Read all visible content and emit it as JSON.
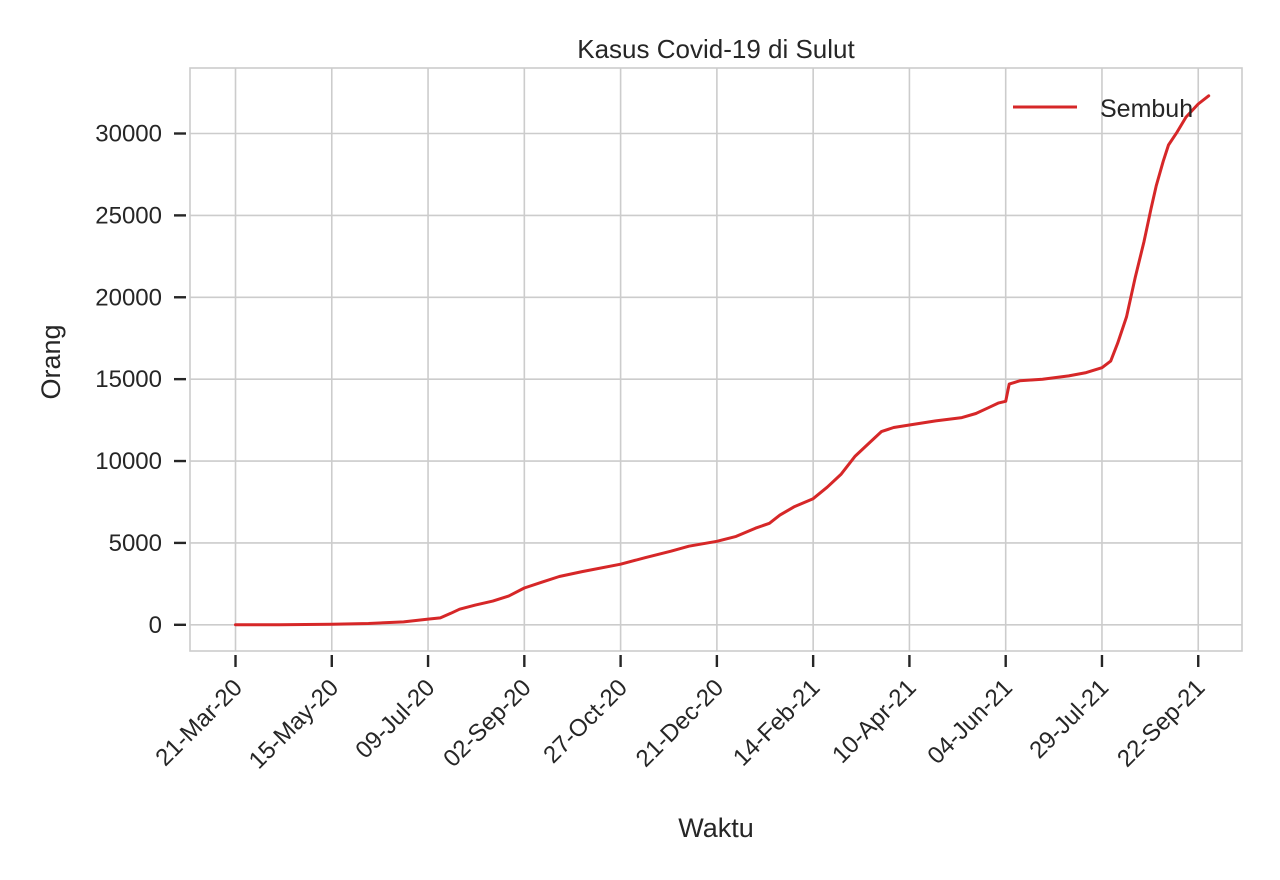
{
  "chart_data": {
    "type": "line",
    "title": "Kasus Covid-19 di Sulut",
    "xlabel": "Waktu",
    "ylabel": "Orang",
    "x_tick_labels": [
      "21-Mar-20",
      "15-May-20",
      "09-Jul-20",
      "02-Sep-20",
      "27-Oct-20",
      "21-Dec-20",
      "14-Feb-21",
      "10-Apr-21",
      "04-Jun-21",
      "29-Jul-21",
      "22-Sep-21"
    ],
    "x_tick_dates": [
      "2020-03-21",
      "2020-05-15",
      "2020-07-09",
      "2020-09-02",
      "2020-10-27",
      "2020-12-21",
      "2021-02-14",
      "2021-04-10",
      "2021-06-04",
      "2021-07-29",
      "2021-09-22"
    ],
    "xlim": [
      "2020-02-24",
      "2021-10-17"
    ],
    "y_ticks": [
      0,
      5000,
      10000,
      15000,
      20000,
      25000,
      30000
    ],
    "ylim": [
      -1600,
      34000
    ],
    "grid": true,
    "legend_position": "top-right",
    "series": [
      {
        "name": "Sembuh",
        "color": "#d62728",
        "points": [
          [
            "2020-03-21",
            0
          ],
          [
            "2020-04-15",
            5
          ],
          [
            "2020-05-15",
            30
          ],
          [
            "2020-06-05",
            80
          ],
          [
            "2020-06-25",
            180
          ],
          [
            "2020-07-09",
            350
          ],
          [
            "2020-07-16",
            420
          ],
          [
            "2020-07-22",
            700
          ],
          [
            "2020-07-27",
            950
          ],
          [
            "2020-08-05",
            1200
          ],
          [
            "2020-08-15",
            1450
          ],
          [
            "2020-08-24",
            1750
          ],
          [
            "2020-09-02",
            2250
          ],
          [
            "2020-09-12",
            2600
          ],
          [
            "2020-09-22",
            2950
          ],
          [
            "2020-10-05",
            3250
          ],
          [
            "2020-10-27",
            3700
          ],
          [
            "2020-11-10",
            4100
          ],
          [
            "2020-11-25",
            4500
          ],
          [
            "2020-12-05",
            4800
          ],
          [
            "2020-12-21",
            5100
          ],
          [
            "2021-01-01",
            5400
          ],
          [
            "2021-01-12",
            5900
          ],
          [
            "2021-01-20",
            6200
          ],
          [
            "2021-01-26",
            6700
          ],
          [
            "2021-02-03",
            7200
          ],
          [
            "2021-02-14",
            7700
          ],
          [
            "2021-02-22",
            8400
          ],
          [
            "2021-03-02",
            9200
          ],
          [
            "2021-03-10",
            10300
          ],
          [
            "2021-03-18",
            11100
          ],
          [
            "2021-03-25",
            11800
          ],
          [
            "2021-04-01",
            12050
          ],
          [
            "2021-04-10",
            12200
          ],
          [
            "2021-04-25",
            12450
          ],
          [
            "2021-05-10",
            12650
          ],
          [
            "2021-05-18",
            12900
          ],
          [
            "2021-05-25",
            13250
          ],
          [
            "2021-05-31",
            13550
          ],
          [
            "2021-06-04",
            13650
          ],
          [
            "2021-06-06",
            14700
          ],
          [
            "2021-06-12",
            14900
          ],
          [
            "2021-06-25",
            15000
          ],
          [
            "2021-07-10",
            15200
          ],
          [
            "2021-07-20",
            15400
          ],
          [
            "2021-07-29",
            15700
          ],
          [
            "2021-08-03",
            16100
          ],
          [
            "2021-08-07",
            17200
          ],
          [
            "2021-08-12",
            18800
          ],
          [
            "2021-08-17",
            21200
          ],
          [
            "2021-08-22",
            23400
          ],
          [
            "2021-08-26",
            25400
          ],
          [
            "2021-08-29",
            26800
          ],
          [
            "2021-09-02",
            28300
          ],
          [
            "2021-09-05",
            29300
          ],
          [
            "2021-09-10",
            30100
          ],
          [
            "2021-09-15",
            31000
          ],
          [
            "2021-09-22",
            31800
          ],
          [
            "2021-09-28",
            32300
          ]
        ]
      }
    ]
  }
}
